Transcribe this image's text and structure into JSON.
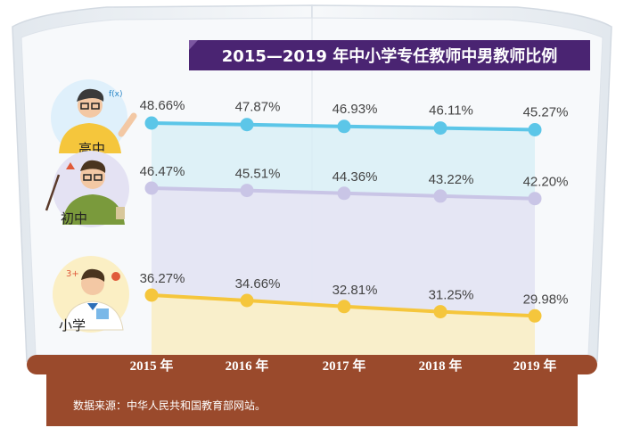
{
  "chart_data": {
    "type": "line",
    "title": "2015—2019 年中小学专任教师中男教师比例",
    "categories": [
      "2015 年",
      "2016 年",
      "2017 年",
      "2018 年",
      "2019 年"
    ],
    "value_labels": {
      "high": [
        "48.66%",
        "47.87%",
        "46.93%",
        "46.11%",
        "45.27%"
      ],
      "middle": [
        "46.47%",
        "45.51%",
        "44.36%",
        "43.22%",
        "42.20%"
      ],
      "primary": [
        "36.27%",
        "34.66%",
        "32.81%",
        "31.25%",
        "29.98%"
      ]
    },
    "series": [
      {
        "key": "high",
        "name": "高中",
        "values": [
          48.66,
          47.87,
          46.93,
          46.11,
          45.27
        ],
        "color": "#5cc6e8"
      },
      {
        "key": "middle",
        "name": "初中",
        "values": [
          46.47,
          45.51,
          44.36,
          43.22,
          42.2
        ],
        "color": "#c9c5e6"
      },
      {
        "key": "primary",
        "name": "小学",
        "values": [
          36.27,
          34.66,
          32.81,
          31.25,
          29.98
        ],
        "color": "#f5c63c"
      }
    ],
    "source": "数据来源：中华人民共和国教育部网站。",
    "xlabel": "",
    "ylabel": ""
  },
  "colors": {
    "title_bg": "#4a2472",
    "title_text": "#ffffff",
    "base_bar": "#9a4a2c",
    "source_panel": "#9a4a2c",
    "book_page": "#f1f4f7",
    "text": "#444444"
  }
}
